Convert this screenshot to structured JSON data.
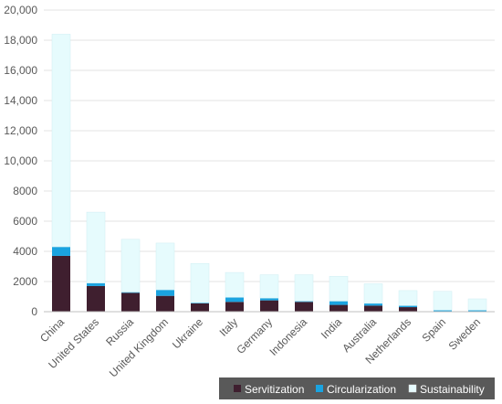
{
  "chart_data": {
    "type": "bar",
    "stacked": true,
    "categories": [
      "China",
      "United States",
      "Russia",
      "United Kingdom",
      "Ukraine",
      "Italy",
      "Germany",
      "Indonesia",
      "India",
      "Australia",
      "Netherlands",
      "Spain",
      "Sweden"
    ],
    "series": [
      {
        "name": "Servitization",
        "color": "#3f1f2f",
        "values": [
          3700,
          1700,
          1250,
          1050,
          550,
          650,
          750,
          650,
          450,
          400,
          300,
          0,
          0
        ]
      },
      {
        "name": "Circularization",
        "color": "#1aa3e0",
        "values": [
          600,
          200,
          50,
          400,
          50,
          300,
          150,
          50,
          250,
          150,
          100,
          100,
          100
        ]
      },
      {
        "name": "Sustainability",
        "color": "#e6fbfd",
        "values": [
          14100,
          4700,
          3500,
          3100,
          2600,
          1650,
          1550,
          1750,
          1650,
          1300,
          1000,
          1250,
          750
        ]
      }
    ],
    "yticks": [
      "0",
      "2000",
      "4000",
      "6000",
      "8000",
      "10,000",
      "12,000",
      "14,000",
      "16,000",
      "18,000",
      "20,000"
    ],
    "ylim": [
      0,
      20000
    ],
    "grid": true,
    "legend_position": "bottom-right",
    "title": "",
    "xlabel": "",
    "ylabel": ""
  }
}
